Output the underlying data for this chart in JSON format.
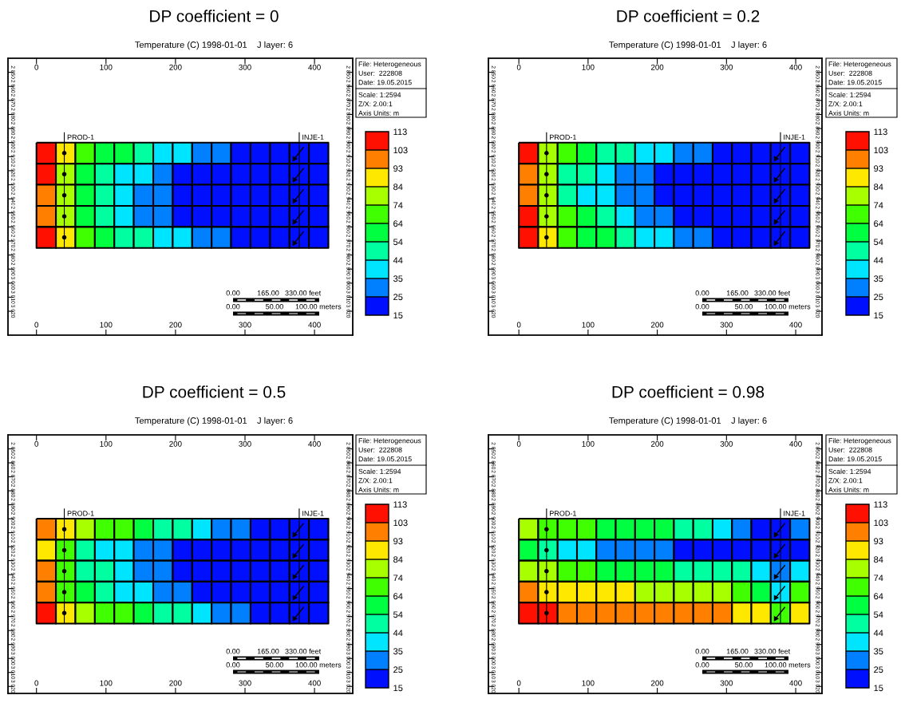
{
  "chart_data": [
    {
      "type": "heatmap",
      "title": "DP coefficient = 0",
      "subtitle": "Temperature (C) 1998-01-01    J layer: 6",
      "x": [
        14,
        42,
        70,
        98,
        126,
        154,
        182,
        210,
        238,
        266,
        294,
        322,
        350,
        378,
        406
      ],
      "y": [
        2907.5,
        2922.5,
        2937.5,
        2952.5,
        2967.5
      ],
      "cells": [
        [
          108,
          88.5,
          69,
          59,
          59,
          49,
          39.5,
          39.5,
          30,
          30,
          20,
          20,
          20,
          20,
          20
        ],
        [
          108,
          79,
          59,
          49,
          39.5,
          39.5,
          30,
          20,
          20,
          20,
          20,
          20,
          20,
          20,
          20
        ],
        [
          98,
          79,
          59,
          49,
          39.5,
          30,
          30,
          20,
          20,
          20,
          20,
          20,
          20,
          20,
          20
        ],
        [
          98,
          79,
          59,
          49,
          39.5,
          30,
          30,
          20,
          20,
          20,
          20,
          20,
          20,
          20,
          20
        ],
        [
          108,
          88.5,
          69,
          59,
          49,
          49,
          39.5,
          39.5,
          30,
          30,
          20,
          20,
          20,
          20,
          20
        ]
      ],
      "clim": [
        15,
        113
      ],
      "cticks": [
        15,
        25,
        35,
        44,
        54,
        64,
        74,
        84,
        93,
        103,
        113
      ],
      "colors": [
        "#0010ff",
        "#0080ff",
        "#00e5ff",
        "#00ffa0",
        "#00ff40",
        "#40ff00",
        "#a8ff00",
        "#ffe800",
        "#ff8000",
        "#ff1000"
      ],
      "xlim": [
        -41,
        455
      ],
      "xticks": [
        0,
        100,
        200,
        300,
        400
      ],
      "x2lim": [
        -41,
        455
      ],
      "x2ticks": [
        0,
        100,
        200,
        300,
        400
      ],
      "ylim": [
        3037,
        2840
      ],
      "yticks": [
        {
          "value": 2850,
          "label": "2 850"
        },
        {
          "value": 2860,
          "label": "2 860"
        },
        {
          "value": 2870,
          "label": "2 870"
        },
        {
          "value": 2880,
          "label": "2 880"
        },
        {
          "value": 2890,
          "label": "2 890"
        },
        {
          "value": 2900,
          "label": "2 900"
        },
        {
          "value": 2910,
          "label": "2 910"
        },
        {
          "value": 2920,
          "label": "2 920"
        },
        {
          "value": 2930,
          "label": "2 930"
        },
        {
          "value": 2940,
          "label": "2 940"
        },
        {
          "value": 2950,
          "label": "2 950"
        },
        {
          "value": 2960,
          "label": "2 960"
        },
        {
          "value": 2970,
          "label": "2 970"
        },
        {
          "value": 2980,
          "label": "2 980"
        },
        {
          "value": 2990,
          "label": "2 990"
        },
        {
          "value": 3000,
          "label": "3 000"
        },
        {
          "value": 3010,
          "label": "3 010"
        },
        {
          "value": 3020,
          "label": "3 020"
        }
      ],
      "y2lim": [
        3037,
        2840
      ],
      "y2ticks": [
        {
          "value": 2850,
          "label": "2 850"
        },
        {
          "value": 2860,
          "label": "2 860"
        },
        {
          "value": 2870,
          "label": "2 870"
        },
        {
          "value": 2880,
          "label": "2 880"
        },
        {
          "value": 2890,
          "label": "2 890"
        },
        {
          "value": 2900,
          "label": "2 900"
        },
        {
          "value": 2910,
          "label": "2 910"
        },
        {
          "value": 2920,
          "label": "2 920"
        },
        {
          "value": 2930,
          "label": "2 930"
        },
        {
          "value": 2940,
          "label": "2 940"
        },
        {
          "value": 2950,
          "label": "2 950"
        },
        {
          "value": 2960,
          "label": "2 960"
        },
        {
          "value": 2970,
          "label": "2 970"
        },
        {
          "value": 2980,
          "label": "2 980"
        },
        {
          "value": 2990,
          "label": "2 990"
        },
        {
          "value": 3000,
          "label": "3 000"
        },
        {
          "value": 3010,
          "label": "3 010"
        },
        {
          "value": 3020,
          "label": "3 020"
        }
      ],
      "annotations": [
        "PROD-1",
        "INJE-1",
        "File: Heterogeneous",
        "User:  222808",
        "Date: 19.05.2015",
        "Scale: 1:2594",
        "Z/X: 2.00:1",
        "Axis Units: m",
        "0.00",
        "165.00",
        "330.00 feet",
        "0.00",
        "50.00",
        "100.00 meters"
      ]
    },
    {
      "type": "heatmap",
      "title": "DP coefficient = 0.2",
      "subtitle": "Temperature (C) 1998-01-01    J layer: 6",
      "x": [
        14,
        42,
        70,
        98,
        126,
        154,
        182,
        210,
        238,
        266,
        294,
        322,
        350,
        378,
        406
      ],
      "y": [
        2907.5,
        2922.5,
        2937.5,
        2952.5,
        2967.5
      ],
      "cells": [
        [
          108,
          79,
          69,
          59,
          49,
          49,
          39.5,
          39.5,
          30,
          30,
          20,
          20,
          20,
          20,
          20
        ],
        [
          98,
          79,
          49,
          49,
          39.5,
          30,
          30,
          20,
          20,
          20,
          20,
          20,
          20,
          20,
          20
        ],
        [
          98,
          79,
          49,
          39.5,
          39.5,
          30,
          30,
          20,
          20,
          20,
          20,
          20,
          20,
          20,
          20
        ],
        [
          108,
          79,
          69,
          59,
          49,
          39.5,
          30,
          30,
          20,
          20,
          20,
          20,
          20,
          20,
          20
        ],
        [
          108,
          88.5,
          69,
          59,
          59,
          49,
          39.5,
          39.5,
          30,
          30,
          20,
          20,
          20,
          20,
          20
        ]
      ],
      "clim": [
        15,
        113
      ],
      "cticks": [
        15,
        25,
        35,
        44,
        54,
        64,
        74,
        84,
        93,
        103,
        113
      ],
      "colors": [
        "#0010ff",
        "#0080ff",
        "#00e5ff",
        "#00ffa0",
        "#00ff40",
        "#40ff00",
        "#a8ff00",
        "#ffe800",
        "#ff8000",
        "#ff1000"
      ],
      "xlim": [
        -44,
        438
      ],
      "xticks": [
        0,
        100,
        200,
        300,
        400
      ],
      "x2lim": [
        -44,
        438
      ],
      "x2ticks": [
        0,
        100,
        200,
        300,
        400
      ],
      "ylim": [
        3037,
        2840
      ],
      "yticks": [
        {
          "value": 2850,
          "label": "2 850"
        },
        {
          "value": 2860,
          "label": "2 860"
        },
        {
          "value": 2870,
          "label": "2 870"
        },
        {
          "value": 2880,
          "label": "2 880"
        },
        {
          "value": 2890,
          "label": "2 890"
        },
        {
          "value": 2900,
          "label": "2 900"
        },
        {
          "value": 2910,
          "label": "2 910"
        },
        {
          "value": 2920,
          "label": "2 920"
        },
        {
          "value": 2930,
          "label": "2 930"
        },
        {
          "value": 2940,
          "label": "2 940"
        },
        {
          "value": 2950,
          "label": "2 950"
        },
        {
          "value": 2960,
          "label": "2 960"
        },
        {
          "value": 2970,
          "label": "2 970"
        },
        {
          "value": 2980,
          "label": "2 980"
        },
        {
          "value": 2990,
          "label": "2 990"
        },
        {
          "value": 3000,
          "label": "3 000"
        },
        {
          "value": 3010,
          "label": "3 010"
        },
        {
          "value": 3020,
          "label": "3 020"
        }
      ],
      "y2lim": [
        3037,
        2840
      ],
      "y2ticks": [
        {
          "value": 2850,
          "label": "2 850"
        },
        {
          "value": 2860,
          "label": "2 860"
        },
        {
          "value": 2870,
          "label": "2 870"
        },
        {
          "value": 2880,
          "label": "2 880"
        },
        {
          "value": 2890,
          "label": "2 890"
        },
        {
          "value": 2900,
          "label": "2 900"
        },
        {
          "value": 2910,
          "label": "2 910"
        },
        {
          "value": 2920,
          "label": "2 920"
        },
        {
          "value": 2930,
          "label": "2 930"
        },
        {
          "value": 2940,
          "label": "2 940"
        },
        {
          "value": 2950,
          "label": "2 950"
        },
        {
          "value": 2960,
          "label": "2 960"
        },
        {
          "value": 2970,
          "label": "2 970"
        },
        {
          "value": 2980,
          "label": "2 980"
        },
        {
          "value": 2990,
          "label": "2 990"
        },
        {
          "value": 3000,
          "label": "3 000"
        },
        {
          "value": 3010,
          "label": "3 010"
        },
        {
          "value": 3020,
          "label": "3 020"
        }
      ],
      "annotations": [
        "PROD-1",
        "INJE-1",
        "File: Heterogeneous",
        "User:  222808",
        "Date: 19.05.2015",
        "Scale: 1:2594",
        "Z/X: 2.00:1",
        "Axis Units: m",
        "0.00",
        "165.00",
        "330.00 feet",
        "0.00",
        "50.00",
        "100.00 meters"
      ]
    },
    {
      "type": "heatmap",
      "title": "DP coefficient = 0.5",
      "subtitle": "Temperature (C) 1998-01-01    J layer: 6",
      "x": [
        14,
        42,
        70,
        98,
        126,
        154,
        182,
        210,
        238,
        266,
        294,
        322,
        350,
        378,
        406
      ],
      "y": [
        2907.5,
        2922.5,
        2937.5,
        2952.5,
        2967.5
      ],
      "cells": [
        [
          98,
          88.5,
          79,
          69,
          69,
          59,
          49,
          49,
          39.5,
          30,
          30,
          20,
          20,
          20,
          20
        ],
        [
          88.5,
          69,
          49,
          39.5,
          39.5,
          30,
          30,
          20,
          20,
          20,
          20,
          20,
          20,
          20,
          20
        ],
        [
          98,
          69,
          49,
          49,
          39.5,
          30,
          30,
          20,
          20,
          20,
          20,
          20,
          20,
          20,
          20
        ],
        [
          98,
          69,
          59,
          49,
          39.5,
          39.5,
          30,
          30,
          20,
          20,
          20,
          20,
          20,
          20,
          20
        ],
        [
          108,
          88.5,
          79,
          69,
          69,
          59,
          49,
          49,
          39.5,
          30,
          30,
          20,
          20,
          20,
          20
        ]
      ],
      "clim": [
        15,
        113
      ],
      "cticks": [
        15,
        25,
        35,
        44,
        54,
        64,
        74,
        84,
        93,
        103,
        113
      ],
      "colors": [
        "#0010ff",
        "#0080ff",
        "#00e5ff",
        "#00ffa0",
        "#00ff40",
        "#40ff00",
        "#a8ff00",
        "#ffe800",
        "#ff8000",
        "#ff1000"
      ],
      "xlim": [
        -41,
        455
      ],
      "xticks": [
        0,
        100,
        200,
        300,
        400
      ],
      "x2lim": [
        -41,
        455
      ],
      "x2ticks": [
        0,
        100,
        200,
        300,
        400
      ],
      "ylim": [
        3025,
        2840
      ],
      "yticks": [
        {
          "value": 2850,
          "label": "2 850"
        },
        {
          "value": 2860,
          "label": "2 860"
        },
        {
          "value": 2870,
          "label": "2 870"
        },
        {
          "value": 2880,
          "label": "2 880"
        },
        {
          "value": 2890,
          "label": "2 890"
        },
        {
          "value": 2900,
          "label": "2 900"
        },
        {
          "value": 2910,
          "label": "2 910"
        },
        {
          "value": 2920,
          "label": "2 920"
        },
        {
          "value": 2930,
          "label": "2 930"
        },
        {
          "value": 2940,
          "label": "2 940"
        },
        {
          "value": 2950,
          "label": "2 950"
        },
        {
          "value": 2960,
          "label": "2 960"
        },
        {
          "value": 2970,
          "label": "2 970"
        },
        {
          "value": 2980,
          "label": "2 980"
        },
        {
          "value": 2990,
          "label": "2 990"
        },
        {
          "value": 3000,
          "label": "3 000"
        },
        {
          "value": 3010,
          "label": "3 010"
        },
        {
          "value": 3020,
          "label": "3 020"
        }
      ],
      "y2lim": [
        3025,
        2840
      ],
      "y2ticks": [
        {
          "value": 2850,
          "label": "2 850"
        },
        {
          "value": 2860,
          "label": "2 860"
        },
        {
          "value": 2870,
          "label": "2 870"
        },
        {
          "value": 2880,
          "label": "2 880"
        },
        {
          "value": 2890,
          "label": "2 890"
        },
        {
          "value": 2900,
          "label": "2 900"
        },
        {
          "value": 2910,
          "label": "2 910"
        },
        {
          "value": 2920,
          "label": "2 920"
        },
        {
          "value": 2930,
          "label": "2 930"
        },
        {
          "value": 2940,
          "label": "2 940"
        },
        {
          "value": 2950,
          "label": "2 950"
        },
        {
          "value": 2960,
          "label": "2 960"
        },
        {
          "value": 2970,
          "label": "2 970"
        },
        {
          "value": 2980,
          "label": "2 980"
        },
        {
          "value": 2990,
          "label": "2 990"
        },
        {
          "value": 3000,
          "label": "3 000"
        },
        {
          "value": 3010,
          "label": "3 010"
        },
        {
          "value": 3020,
          "label": "3 020"
        }
      ],
      "annotations": [
        "PROD-1",
        "INJE-1",
        "File: Heterogeneous",
        "User:  222808",
        "Date: 19.05.2015",
        "Scale: 1:2594",
        "Z/X: 2.00:1",
        "Axis Units: m",
        "0.00",
        "165.00",
        "330.00 feet",
        "0.00",
        "50.00",
        "100.00 meters"
      ]
    },
    {
      "type": "heatmap",
      "title": "DP coefficient = 0.98",
      "subtitle": "Temperature (C) 1998-01-01    J layer: 6",
      "x": [
        14,
        42,
        70,
        98,
        126,
        154,
        182,
        210,
        238,
        266,
        294,
        322,
        350,
        378,
        406
      ],
      "y": [
        2907.5,
        2922.5,
        2937.5,
        2952.5,
        2967.5
      ],
      "cells": [
        [
          79,
          69,
          69,
          69,
          59,
          59,
          59,
          59,
          49,
          49,
          39.5,
          30,
          20,
          20,
          30
        ],
        [
          59,
          49,
          39.5,
          39.5,
          30,
          30,
          30,
          30,
          20,
          20,
          20,
          20,
          20,
          20,
          20
        ],
        [
          79,
          79,
          69,
          69,
          59,
          59,
          59,
          59,
          49,
          49,
          49,
          49,
          39.5,
          30,
          39.5
        ],
        [
          98,
          88.5,
          88.5,
          88.5,
          88.5,
          88.5,
          79,
          79,
          79,
          79,
          79,
          69,
          59,
          39.5,
          69
        ],
        [
          108,
          108,
          98,
          98,
          98,
          98,
          98,
          98,
          98,
          98,
          98,
          88.5,
          88.5,
          69,
          88.5
        ]
      ],
      "clim": [
        15,
        113
      ],
      "cticks": [
        15,
        25,
        35,
        44,
        54,
        64,
        74,
        84,
        93,
        103,
        113
      ],
      "colors": [
        "#0010ff",
        "#0080ff",
        "#00e5ff",
        "#00ffa0",
        "#00ff40",
        "#40ff00",
        "#a8ff00",
        "#ffe800",
        "#ff8000",
        "#ff1000"
      ],
      "xlim": [
        -44,
        438
      ],
      "xticks": [
        0,
        100,
        200,
        300,
        400
      ],
      "x2lim": [
        -44,
        438
      ],
      "x2ticks": [
        0,
        100,
        200,
        300,
        400
      ],
      "ylim": [
        3025,
        2840
      ],
      "yticks": [
        {
          "value": 2850,
          "label": "2 850"
        },
        {
          "value": 2860,
          "label": "2 860"
        },
        {
          "value": 2870,
          "label": "2 870"
        },
        {
          "value": 2880,
          "label": "2 880"
        },
        {
          "value": 2890,
          "label": "2 890"
        },
        {
          "value": 2900,
          "label": "2 900"
        },
        {
          "value": 2910,
          "label": "2 910"
        },
        {
          "value": 2920,
          "label": "2 920"
        },
        {
          "value": 2930,
          "label": "2 930"
        },
        {
          "value": 2940,
          "label": "2 940"
        },
        {
          "value": 2950,
          "label": "2 950"
        },
        {
          "value": 2960,
          "label": "2 960"
        },
        {
          "value": 2970,
          "label": "2 970"
        },
        {
          "value": 2980,
          "label": "2 980"
        },
        {
          "value": 2990,
          "label": "2 990"
        },
        {
          "value": 3000,
          "label": "3 000"
        },
        {
          "value": 3010,
          "label": "3 010"
        },
        {
          "value": 3020,
          "label": "3 020"
        }
      ],
      "y2lim": [
        3025,
        2840
      ],
      "y2ticks": [
        {
          "value": 2850,
          "label": "2 850"
        },
        {
          "value": 2860,
          "label": "2 860"
        },
        {
          "value": 2870,
          "label": "2 870"
        },
        {
          "value": 2880,
          "label": "2 880"
        },
        {
          "value": 2890,
          "label": "2 890"
        },
        {
          "value": 2900,
          "label": "2 900"
        },
        {
          "value": 2910,
          "label": "2 910"
        },
        {
          "value": 2920,
          "label": "2 920"
        },
        {
          "value": 2930,
          "label": "2 930"
        },
        {
          "value": 2940,
          "label": "2 940"
        },
        {
          "value": 2950,
          "label": "2 950"
        },
        {
          "value": 2960,
          "label": "2 960"
        },
        {
          "value": 2970,
          "label": "2 970"
        },
        {
          "value": 2980,
          "label": "2 980"
        },
        {
          "value": 2990,
          "label": "2 990"
        },
        {
          "value": 3000,
          "label": "3 000"
        },
        {
          "value": 3010,
          "label": "3 010"
        },
        {
          "value": 3020,
          "label": "3 020"
        }
      ],
      "annotations": [
        "PROD-1",
        "INJE-1",
        "File: Heterogeneous",
        "User:  222808",
        "Date: 19.05.2015",
        "Scale: 1:2594",
        "Z/X: 2.00:1",
        "Axis Units: m",
        "0.00",
        "165.00",
        "330.00 feet",
        "0.00",
        "50.00",
        "100.00 meters"
      ]
    }
  ]
}
